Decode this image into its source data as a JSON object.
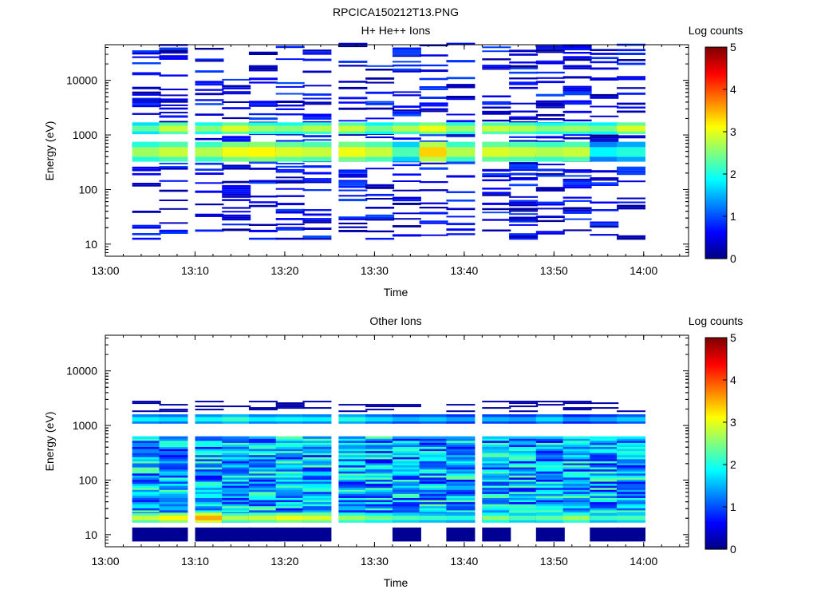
{
  "figure_title": "RPCICA150212T13.PNG",
  "chart_data": [
    {
      "type": "heatmap",
      "title": "H+ He++ Ions",
      "xlabel": "Time",
      "ylabel": "Energy (eV)",
      "x_ticks": [
        "13:00",
        "13:10",
        "13:20",
        "13:30",
        "13:40",
        "13:50",
        "14:00"
      ],
      "x_range": [
        "13:00",
        "14:05"
      ],
      "y_scale": "log",
      "y_ticks": [
        10,
        100,
        1000,
        10000
      ],
      "y_range": [
        6,
        45000
      ],
      "colorbar": {
        "label": "Log counts",
        "range": [
          0,
          5
        ],
        "ticks": [
          0,
          1,
          2,
          3,
          4,
          5
        ]
      },
      "colormap": [
        "#00007f",
        "#0000ff",
        "#007fff",
        "#00ffff",
        "#7fff7f",
        "#ffff00",
        "#ff7f00",
        "#ff0000",
        "#7f0000"
      ],
      "time_bins_start": [
        "13:03",
        "13:06",
        "13:10",
        "13:13",
        "13:16",
        "13:19",
        "13:22",
        "13:26",
        "13:29",
        "13:32",
        "13:35",
        "13:38",
        "13:42",
        "13:45",
        "13:48",
        "13:51",
        "13:54",
        "13:57"
      ],
      "bands": [
        {
          "energy_range_eV": [
            1050,
            1700
          ],
          "log_counts": [
            2.1,
            2.6,
            2.3,
            2.7,
            2.4,
            2.3,
            2.5,
            2.6,
            2.2,
            2.5,
            2.8,
            2.4,
            2.6,
            2.5,
            2.3,
            2.4,
            2.2,
            2.7
          ]
        },
        {
          "energy_range_eV": [
            330,
            750
          ],
          "log_counts": [
            2.4,
            2.6,
            2.5,
            2.8,
            2.9,
            2.7,
            2.6,
            2.8,
            2.6,
            2.0,
            3.1,
            2.5,
            2.7,
            2.6,
            2.5,
            2.6,
            1.6,
            1.8
          ]
        }
      ],
      "sparse_region_eV": [
        12,
        45000
      ],
      "sparse_log_counts": [
        0.1,
        1.0
      ]
    },
    {
      "type": "heatmap",
      "title": "Other Ions",
      "xlabel": "Time",
      "ylabel": "Energy (eV)",
      "x_ticks": [
        "13:00",
        "13:10",
        "13:20",
        "13:30",
        "13:40",
        "13:50",
        "14:00"
      ],
      "x_range": [
        "13:00",
        "14:05"
      ],
      "y_scale": "log",
      "y_ticks": [
        10,
        100,
        1000,
        10000
      ],
      "y_range": [
        6,
        45000
      ],
      "colorbar": {
        "label": "Log counts",
        "range": [
          0,
          5
        ],
        "ticks": [
          0,
          1,
          2,
          3,
          4,
          5
        ]
      },
      "time_bins_start": [
        "13:03",
        "13:06",
        "13:10",
        "13:13",
        "13:16",
        "13:19",
        "13:22",
        "13:26",
        "13:29",
        "13:32",
        "13:35",
        "13:38",
        "13:42",
        "13:45",
        "13:48",
        "13:51",
        "13:54",
        "13:57"
      ],
      "bands": [
        {
          "energy_range_eV": [
            1100,
            1600
          ],
          "log_counts": [
            1.6,
            1.5,
            1.7,
            1.9,
            1.6,
            1.7,
            1.6,
            1.8,
            1.5,
            1.3,
            1.4,
            1.2,
            1.3,
            1.2,
            1.5,
            1.1,
            1.2,
            1.4
          ]
        },
        {
          "energy_range_eV": [
            17,
            25
          ],
          "log_counts": [
            2.6,
            2.9,
            3.3,
            2.5,
            2.6,
            2.8,
            2.7,
            2.4,
            2.2,
            2.0,
            1.9,
            1.8,
            2.3,
            2.0,
            2.1,
            2.4,
            1.9,
            2.0
          ]
        }
      ],
      "dense_region_eV": [
        17,
        600
      ],
      "dense_log_counts": [
        0.6,
        2.4
      ]
    }
  ]
}
